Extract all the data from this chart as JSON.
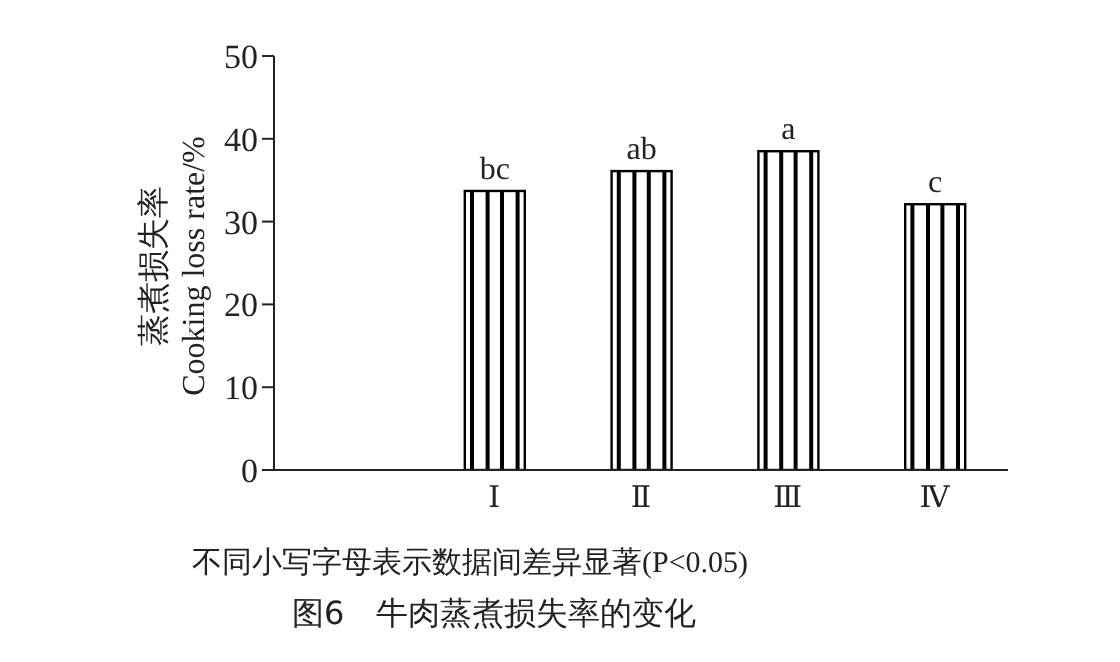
{
  "chart_data": {
    "type": "bar",
    "title": "图6　牛肉蒸煮损失率的变化",
    "ylabel": "蒸煮损失率\nCooking loss rate/%",
    "annotations": [
      "不同小写字母表示数据间差异显著(P<0.05)"
    ],
    "categories": [
      null,
      "Ⅰ",
      "Ⅱ",
      "Ⅲ",
      "Ⅳ"
    ],
    "values": [
      null,
      33.7,
      36.1,
      38.5,
      32.1
    ],
    "value_labels": [
      null,
      "bc",
      "ab",
      "a",
      "c"
    ],
    "color": "#000000",
    "ylim": [
      0,
      50
    ],
    "yticks": [
      0,
      10,
      20,
      30,
      40,
      50
    ]
  }
}
